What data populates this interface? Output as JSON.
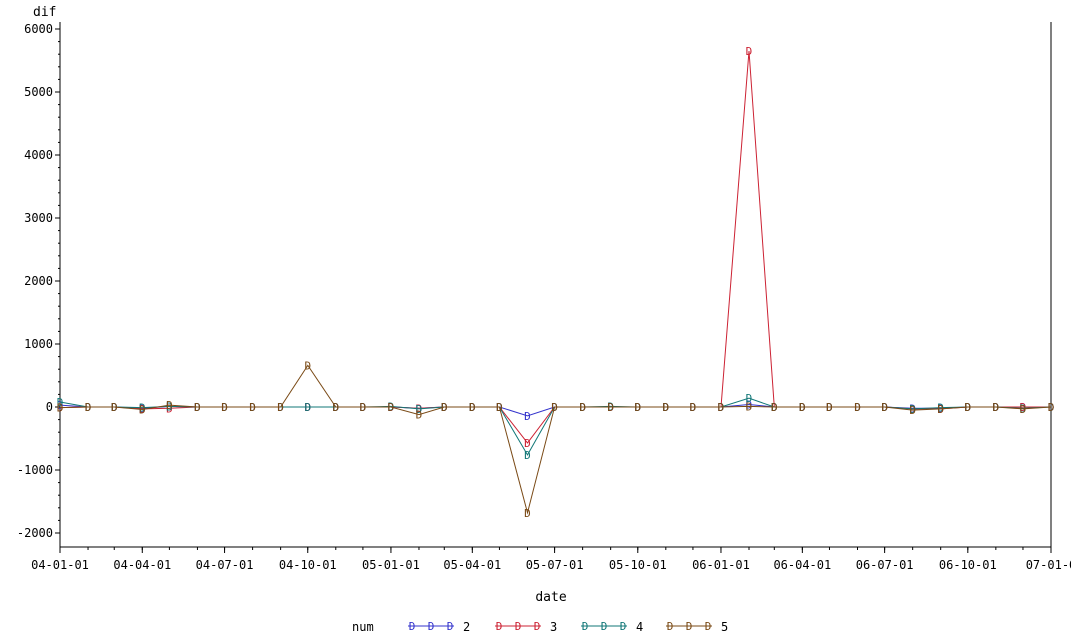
{
  "chart_data": {
    "type": "line",
    "title": "",
    "xlabel": "date",
    "ylabel": "dif",
    "ylim": [
      -2000,
      6000
    ],
    "yticks": [
      -2000,
      -1000,
      0,
      1000,
      2000,
      3000,
      4000,
      5000,
      6000
    ],
    "xlim": [
      "2004-01-01",
      "2007-01-01"
    ],
    "xticks": [
      {
        "date": "2004-01-01",
        "label": "04-01-01"
      },
      {
        "date": "2004-04-01",
        "label": "04-04-01"
      },
      {
        "date": "2004-07-01",
        "label": "04-07-01"
      },
      {
        "date": "2004-10-01",
        "label": "04-10-01"
      },
      {
        "date": "2005-01-01",
        "label": "05-01-01"
      },
      {
        "date": "2005-04-01",
        "label": "05-04-01"
      },
      {
        "date": "2005-07-01",
        "label": "05-07-01"
      },
      {
        "date": "2005-10-01",
        "label": "05-10-01"
      },
      {
        "date": "2006-01-01",
        "label": "06-01-01"
      },
      {
        "date": "2006-04-01",
        "label": "06-04-01"
      },
      {
        "date": "2006-07-01",
        "label": "06-07-01"
      },
      {
        "date": "2006-10-01",
        "label": "06-10-01"
      },
      {
        "date": "2007-01-01",
        "label": "07-01-0"
      }
    ],
    "x": [
      "2004-01-01",
      "2004-02-01",
      "2004-03-01",
      "2004-04-01",
      "2004-05-01",
      "2004-06-01",
      "2004-07-01",
      "2004-08-01",
      "2004-09-01",
      "2004-10-01",
      "2004-11-01",
      "2004-12-01",
      "2005-01-01",
      "2005-02-01",
      "2005-03-01",
      "2005-04-01",
      "2005-05-01",
      "2005-06-01",
      "2005-07-01",
      "2005-08-01",
      "2005-09-01",
      "2005-10-01",
      "2005-11-01",
      "2005-12-01",
      "2006-01-01",
      "2006-02-01",
      "2006-03-01",
      "2006-04-01",
      "2006-05-01",
      "2006-06-01",
      "2006-07-01",
      "2006-08-01",
      "2006-09-01",
      "2006-10-01",
      "2006-11-01",
      "2006-12-01",
      "2007-01-01"
    ],
    "series": [
      {
        "name": "2",
        "color": "#3333cc",
        "values": [
          30,
          0,
          0,
          -20,
          10,
          0,
          0,
          0,
          0,
          0,
          0,
          0,
          0,
          -20,
          0,
          0,
          0,
          -140,
          0,
          0,
          0,
          0,
          0,
          0,
          0,
          40,
          0,
          0,
          0,
          0,
          0,
          -20,
          -20,
          0,
          0,
          0,
          0
        ]
      },
      {
        "name": "3",
        "color": "#cc2233",
        "values": [
          -10,
          0,
          0,
          -30,
          -20,
          0,
          0,
          0,
          0,
          0,
          0,
          0,
          0,
          -20,
          0,
          0,
          0,
          -570,
          0,
          0,
          0,
          0,
          0,
          0,
          0,
          5650,
          0,
          0,
          0,
          0,
          0,
          -30,
          -30,
          0,
          0,
          0,
          0
        ]
      },
      {
        "name": "4",
        "color": "#117777",
        "values": [
          80,
          0,
          0,
          -10,
          10,
          0,
          0,
          0,
          0,
          0,
          0,
          0,
          10,
          -30,
          0,
          0,
          0,
          -760,
          0,
          0,
          10,
          0,
          0,
          0,
          0,
          140,
          0,
          0,
          0,
          0,
          0,
          -30,
          -10,
          0,
          0,
          -20,
          0
        ]
      },
      {
        "name": "5",
        "color": "#7a4a16",
        "values": [
          -10,
          0,
          0,
          -40,
          30,
          0,
          0,
          0,
          0,
          660,
          0,
          0,
          0,
          -120,
          0,
          0,
          0,
          -1680,
          0,
          0,
          0,
          0,
          0,
          0,
          0,
          10,
          0,
          0,
          0,
          0,
          0,
          -50,
          -30,
          0,
          0,
          -30,
          0
        ]
      }
    ],
    "legend": {
      "title": "num",
      "placement": "bottom-center",
      "marker": "D"
    },
    "grid": false
  }
}
